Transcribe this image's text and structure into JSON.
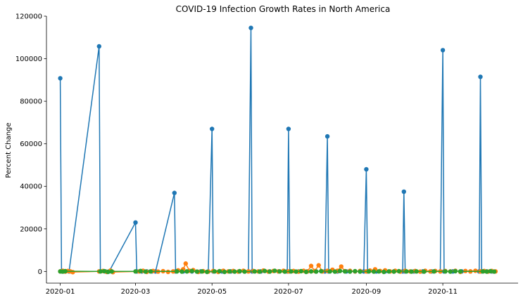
{
  "chart_data": {
    "type": "line",
    "title": "COVID-19 Infection Growth Rates in North America",
    "xlabel": "",
    "ylabel": "Percent Change",
    "x_axis_type": "date",
    "xlim": [
      "2019-12-21",
      "2020-12-31"
    ],
    "ylim": [
      -5500,
      120000
    ],
    "x_ticks": [
      "2020-01-01",
      "2020-03-01",
      "2020-05-01",
      "2020-07-01",
      "2020-09-01",
      "2020-11-01"
    ],
    "x_tick_labels": [
      "2020-01",
      "2020-03",
      "2020-05",
      "2020-07",
      "2020-09",
      "2020-11"
    ],
    "y_ticks": [
      0,
      20000,
      40000,
      60000,
      80000,
      100000,
      120000
    ],
    "y_tick_labels": [
      "0",
      "20000",
      "40000",
      "60000",
      "80000",
      "100000",
      "120000"
    ],
    "grid": false,
    "legend": "none",
    "marker": "circle",
    "series": [
      {
        "color": "#1f77b4",
        "points": [
          [
            "2020-01-01",
            90800
          ],
          [
            "2020-01-02",
            0
          ],
          [
            "2020-01-05",
            0
          ],
          [
            "2020-01-08",
            0
          ],
          [
            "2020-02-01",
            105800
          ],
          [
            "2020-02-02",
            0
          ],
          [
            "2020-02-06",
            0
          ],
          [
            "2020-02-09",
            0
          ],
          [
            "2020-03-01",
            23000
          ],
          [
            "2020-03-02",
            0
          ],
          [
            "2020-03-06",
            0
          ],
          [
            "2020-03-10",
            0
          ],
          [
            "2020-03-14",
            0
          ],
          [
            "2020-03-17",
            0
          ],
          [
            "2020-04-01",
            36900
          ],
          [
            "2020-04-02",
            0
          ],
          [
            "2020-04-08",
            0
          ],
          [
            "2020-04-15",
            0
          ],
          [
            "2020-04-22",
            0
          ],
          [
            "2020-04-28",
            0
          ],
          [
            "2020-05-01",
            67000
          ],
          [
            "2020-05-02",
            0
          ],
          [
            "2020-05-09",
            0
          ],
          [
            "2020-05-16",
            0
          ],
          [
            "2020-05-23",
            0
          ],
          [
            "2020-05-30",
            0
          ],
          [
            "2020-06-01",
            114500
          ],
          [
            "2020-06-02",
            0
          ],
          [
            "2020-06-09",
            0
          ],
          [
            "2020-06-16",
            0
          ],
          [
            "2020-06-23",
            0
          ],
          [
            "2020-06-30",
            0
          ],
          [
            "2020-07-01",
            67000
          ],
          [
            "2020-07-02",
            0
          ],
          [
            "2020-07-09",
            0
          ],
          [
            "2020-07-16",
            0
          ],
          [
            "2020-07-23",
            0
          ],
          [
            "2020-07-30",
            0
          ],
          [
            "2020-08-01",
            63500
          ],
          [
            "2020-08-02",
            0
          ],
          [
            "2020-08-09",
            0
          ],
          [
            "2020-08-16",
            0
          ],
          [
            "2020-08-23",
            0
          ],
          [
            "2020-08-30",
            0
          ],
          [
            "2020-09-01",
            48000
          ],
          [
            "2020-09-02",
            0
          ],
          [
            "2020-09-09",
            0
          ],
          [
            "2020-09-16",
            0
          ],
          [
            "2020-09-23",
            0
          ],
          [
            "2020-09-30",
            0
          ],
          [
            "2020-10-01",
            37500
          ],
          [
            "2020-10-02",
            0
          ],
          [
            "2020-10-09",
            0
          ],
          [
            "2020-10-16",
            0
          ],
          [
            "2020-10-23",
            0
          ],
          [
            "2020-10-30",
            0
          ],
          [
            "2020-11-01",
            104000
          ],
          [
            "2020-11-02",
            0
          ],
          [
            "2020-11-09",
            0
          ],
          [
            "2020-11-16",
            0
          ],
          [
            "2020-11-23",
            0
          ],
          [
            "2020-11-30",
            0
          ],
          [
            "2020-12-01",
            91500
          ],
          [
            "2020-12-02",
            0
          ],
          [
            "2020-12-06",
            0
          ],
          [
            "2020-12-10",
            0
          ]
        ]
      },
      {
        "color": "#ff7f0e",
        "points": [
          [
            "2020-01-01",
            0
          ],
          [
            "2020-01-03",
            300
          ],
          [
            "2020-01-05",
            -100
          ],
          [
            "2020-01-07",
            200
          ],
          [
            "2020-01-09",
            0
          ],
          [
            "2020-01-11",
            -300
          ],
          [
            "2020-02-01",
            0
          ],
          [
            "2020-02-04",
            200
          ],
          [
            "2020-02-07",
            -200
          ],
          [
            "2020-02-10",
            400
          ],
          [
            "2020-02-12",
            -300
          ],
          [
            "2020-03-04",
            0
          ],
          [
            "2020-03-07",
            300
          ],
          [
            "2020-03-10",
            -200
          ],
          [
            "2020-03-15",
            200
          ],
          [
            "2020-03-19",
            -100
          ],
          [
            "2020-03-23",
            100
          ],
          [
            "2020-03-27",
            -200
          ],
          [
            "2020-03-31",
            0
          ],
          [
            "2020-04-04",
            500
          ],
          [
            "2020-04-08",
            1000
          ],
          [
            "2020-04-10",
            3700
          ],
          [
            "2020-04-13",
            300
          ],
          [
            "2020-04-16",
            600
          ],
          [
            "2020-04-20",
            -200
          ],
          [
            "2020-04-24",
            100
          ],
          [
            "2020-04-28",
            -100
          ],
          [
            "2020-05-02",
            200
          ],
          [
            "2020-05-06",
            -200
          ],
          [
            "2020-05-10",
            300
          ],
          [
            "2020-05-14",
            0
          ],
          [
            "2020-05-18",
            200
          ],
          [
            "2020-05-22",
            -100
          ],
          [
            "2020-05-26",
            300
          ],
          [
            "2020-05-30",
            0
          ],
          [
            "2020-06-03",
            200
          ],
          [
            "2020-06-07",
            0
          ],
          [
            "2020-06-11",
            400
          ],
          [
            "2020-06-15",
            -100
          ],
          [
            "2020-06-19",
            200
          ],
          [
            "2020-06-23",
            0
          ],
          [
            "2020-06-27",
            300
          ],
          [
            "2020-07-01",
            0
          ],
          [
            "2020-07-05",
            200
          ],
          [
            "2020-07-09",
            -100
          ],
          [
            "2020-07-13",
            300
          ],
          [
            "2020-07-16",
            0
          ],
          [
            "2020-07-19",
            2600
          ],
          [
            "2020-07-22",
            200
          ],
          [
            "2020-07-25",
            2900
          ],
          [
            "2020-07-28",
            0
          ],
          [
            "2020-08-01",
            300
          ],
          [
            "2020-08-05",
            800
          ],
          [
            "2020-08-09",
            300
          ],
          [
            "2020-08-12",
            2300
          ],
          [
            "2020-08-15",
            100
          ],
          [
            "2020-08-19",
            300
          ],
          [
            "2020-08-23",
            0
          ],
          [
            "2020-08-27",
            200
          ],
          [
            "2020-09-01",
            0
          ],
          [
            "2020-09-04",
            400
          ],
          [
            "2020-09-08",
            1000
          ],
          [
            "2020-09-12",
            200
          ],
          [
            "2020-09-16",
            500
          ],
          [
            "2020-09-20",
            0
          ],
          [
            "2020-09-24",
            300
          ],
          [
            "2020-09-28",
            -100
          ],
          [
            "2020-10-02",
            300
          ],
          [
            "2020-10-06",
            0
          ],
          [
            "2020-10-10",
            200
          ],
          [
            "2020-10-14",
            -100
          ],
          [
            "2020-10-18",
            300
          ],
          [
            "2020-10-22",
            0
          ],
          [
            "2020-10-26",
            200
          ],
          [
            "2020-10-30",
            0
          ],
          [
            "2020-11-03",
            200
          ],
          [
            "2020-11-07",
            0
          ],
          [
            "2020-11-11",
            300
          ],
          [
            "2020-11-15",
            -200
          ],
          [
            "2020-11-19",
            200
          ],
          [
            "2020-11-23",
            0
          ],
          [
            "2020-11-27",
            300
          ],
          [
            "2020-12-01",
            0
          ],
          [
            "2020-12-04",
            200
          ],
          [
            "2020-12-07",
            -100
          ],
          [
            "2020-12-10",
            200
          ],
          [
            "2020-12-13",
            0
          ]
        ]
      },
      {
        "color": "#2ca02c",
        "points": [
          [
            "2020-01-01",
            0
          ],
          [
            "2020-01-03",
            -100
          ],
          [
            "2020-01-05",
            100
          ],
          [
            "2020-02-02",
            0
          ],
          [
            "2020-02-05",
            100
          ],
          [
            "2020-02-08",
            -200
          ],
          [
            "2020-02-11",
            0
          ],
          [
            "2020-03-01",
            0
          ],
          [
            "2020-03-05",
            200
          ],
          [
            "2020-03-09",
            -100
          ],
          [
            "2020-03-13",
            0
          ],
          [
            "2020-04-03",
            0
          ],
          [
            "2020-04-07",
            -100
          ],
          [
            "2020-04-11",
            0
          ],
          [
            "2020-04-15",
            200
          ],
          [
            "2020-04-19",
            -100
          ],
          [
            "2020-04-23",
            0
          ],
          [
            "2020-04-27",
            -200
          ],
          [
            "2020-05-03",
            0
          ],
          [
            "2020-05-07",
            100
          ],
          [
            "2020-05-11",
            -200
          ],
          [
            "2020-05-15",
            0
          ],
          [
            "2020-05-19",
            -100
          ],
          [
            "2020-05-23",
            100
          ],
          [
            "2020-05-27",
            -100
          ],
          [
            "2020-06-04",
            0
          ],
          [
            "2020-06-08",
            -100
          ],
          [
            "2020-06-12",
            200
          ],
          [
            "2020-06-16",
            -100
          ],
          [
            "2020-06-20",
            300
          ],
          [
            "2020-06-24",
            0
          ],
          [
            "2020-06-28",
            -100
          ],
          [
            "2020-07-03",
            0
          ],
          [
            "2020-07-07",
            -100
          ],
          [
            "2020-07-11",
            100
          ],
          [
            "2020-07-15",
            -200
          ],
          [
            "2020-07-19",
            0
          ],
          [
            "2020-07-23",
            -100
          ],
          [
            "2020-07-27",
            100
          ],
          [
            "2020-08-03",
            0
          ],
          [
            "2020-08-07",
            -100
          ],
          [
            "2020-08-11",
            200
          ],
          [
            "2020-08-15",
            0
          ],
          [
            "2020-08-19",
            -100
          ],
          [
            "2020-08-23",
            100
          ],
          [
            "2020-08-27",
            -100
          ],
          [
            "2020-09-03",
            0
          ],
          [
            "2020-09-07",
            -100
          ],
          [
            "2020-09-11",
            0
          ],
          [
            "2020-09-15",
            -200
          ],
          [
            "2020-09-19",
            0
          ],
          [
            "2020-09-23",
            -100
          ],
          [
            "2020-09-27",
            100
          ],
          [
            "2020-10-03",
            0
          ],
          [
            "2020-10-07",
            -100
          ],
          [
            "2020-10-11",
            0
          ],
          [
            "2020-10-17",
            -100
          ],
          [
            "2020-10-25",
            0
          ],
          [
            "2020-11-03",
            0
          ],
          [
            "2020-11-07",
            -100
          ],
          [
            "2020-11-11",
            100
          ],
          [
            "2020-11-15",
            0
          ],
          [
            "2020-12-03",
            0
          ],
          [
            "2020-12-06",
            -100
          ],
          [
            "2020-12-09",
            100
          ],
          [
            "2020-12-12",
            -100
          ]
        ]
      }
    ]
  }
}
